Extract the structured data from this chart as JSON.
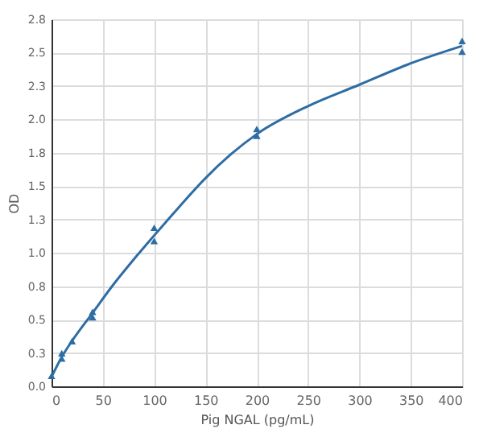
{
  "chart_data": {
    "type": "scatter",
    "xlabel": "Pig NGAL (pg/mL)",
    "ylabel": "OD",
    "xlim": [
      0,
      400
    ],
    "xticks": [
      0,
      50,
      100,
      150,
      200,
      250,
      300,
      350,
      400
    ],
    "ylim": [
      0,
      2.75
    ],
    "yticks": [
      {
        "value": 0,
        "label": "0.0"
      },
      {
        "value": 0.25,
        "label": "0.3"
      },
      {
        "value": 0.5,
        "label": "0.5"
      },
      {
        "value": 0.75,
        "label": "0.8"
      },
      {
        "value": 1.0,
        "label": "1.0"
      },
      {
        "value": 1.25,
        "label": "1.3"
      },
      {
        "value": 1.5,
        "label": "1.5"
      },
      {
        "value": 1.75,
        "label": "1.8"
      },
      {
        "value": 2.0,
        "label": "2.0"
      },
      {
        "value": 2.25,
        "label": "2.3"
      },
      {
        "value": 2.5,
        "label": "2.5"
      },
      {
        "value": 2.75,
        "label": "2.8"
      }
    ],
    "grid": true,
    "series": [
      {
        "type": "line",
        "color": "#2e6da4",
        "marker": "none",
        "line_style": "solid",
        "x": [
          0,
          10,
          20,
          40,
          60,
          80,
          100,
          125,
          150,
          175,
          200,
          250,
          300,
          350,
          400
        ],
        "values": [
          0.07,
          0.22,
          0.34,
          0.55,
          0.76,
          0.95,
          1.13,
          1.35,
          1.56,
          1.74,
          1.89,
          2.1,
          2.26,
          2.42,
          2.55
        ]
      },
      {
        "color": "#2e6da4",
        "marker": "triangle",
        "x": [
          0,
          10,
          10,
          20,
          40,
          40,
          100,
          100,
          200,
          200,
          400,
          400
        ],
        "values": [
          0.07,
          0.2,
          0.24,
          0.33,
          0.51,
          0.55,
          1.08,
          1.18,
          1.87,
          1.92,
          2.5,
          2.58
        ]
      }
    ]
  }
}
